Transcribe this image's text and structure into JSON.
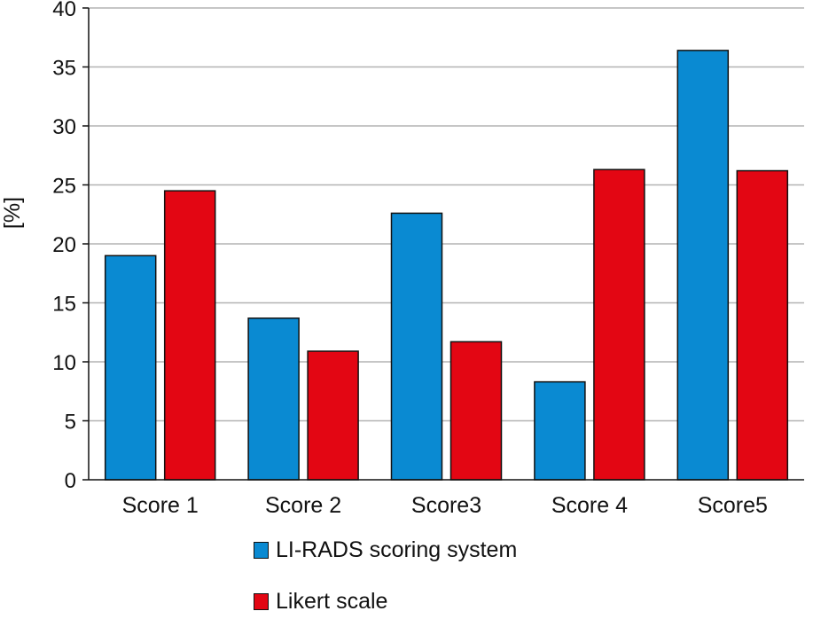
{
  "chart_data": {
    "type": "bar",
    "title": "",
    "xlabel": "",
    "ylabel": "[%]",
    "ylim": [
      0,
      40
    ],
    "yticks": [
      0,
      5,
      10,
      15,
      20,
      25,
      30,
      35,
      40
    ],
    "grid": true,
    "legend_position": "bottom",
    "categories": [
      "Score 1",
      "Score 2",
      "Score3",
      "Score 4",
      "Score5"
    ],
    "series": [
      {
        "name": "LI-RADS scoring system",
        "color": "#0a8ad2",
        "values": [
          19.0,
          13.7,
          22.6,
          8.3,
          36.4
        ]
      },
      {
        "name": "Likert scale",
        "color": "#e30613",
        "values": [
          24.5,
          10.9,
          11.7,
          26.3,
          26.2
        ]
      }
    ]
  }
}
